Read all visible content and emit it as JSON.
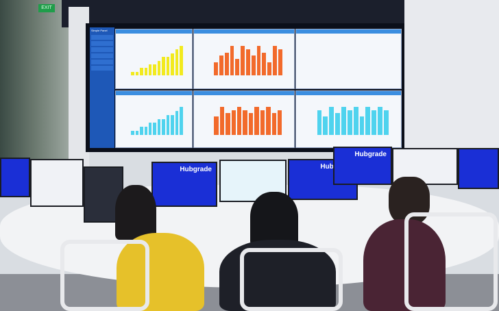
{
  "scene": {
    "exit_sign": "EXIT",
    "brand": "Hubgrade"
  },
  "videowall": {
    "sidebar_title": "Simple Panel",
    "colors": {
      "yellow": "#f2ea1e",
      "orange": "#f26a2b",
      "cyan": "#4fd3ee",
      "sidebar": "#1e58b7"
    },
    "panels": [
      {
        "color": "yellow",
        "values": [
          1,
          1,
          2,
          2,
          3,
          3,
          4,
          5,
          5,
          6,
          7,
          8
        ]
      },
      {
        "color": "orange",
        "values": [
          4,
          6,
          7,
          9,
          5,
          9,
          8,
          6,
          9,
          7,
          4,
          9,
          8
        ]
      },
      {
        "color": "cyan",
        "values": []
      },
      {
        "color": "yellow",
        "values": []
      },
      {
        "color": "cyan",
        "values": [
          1,
          1,
          2,
          2,
          3,
          3,
          4,
          4,
          5,
          5,
          6,
          7
        ]
      },
      {
        "color": "orange",
        "values": [
          6,
          9,
          7,
          8,
          9,
          8,
          7,
          9,
          8,
          9,
          7,
          8
        ]
      },
      {
        "color": "cyan",
        "values": [
          8,
          6,
          9,
          7,
          9,
          8,
          9,
          6,
          9,
          8,
          9,
          8
        ]
      }
    ]
  }
}
